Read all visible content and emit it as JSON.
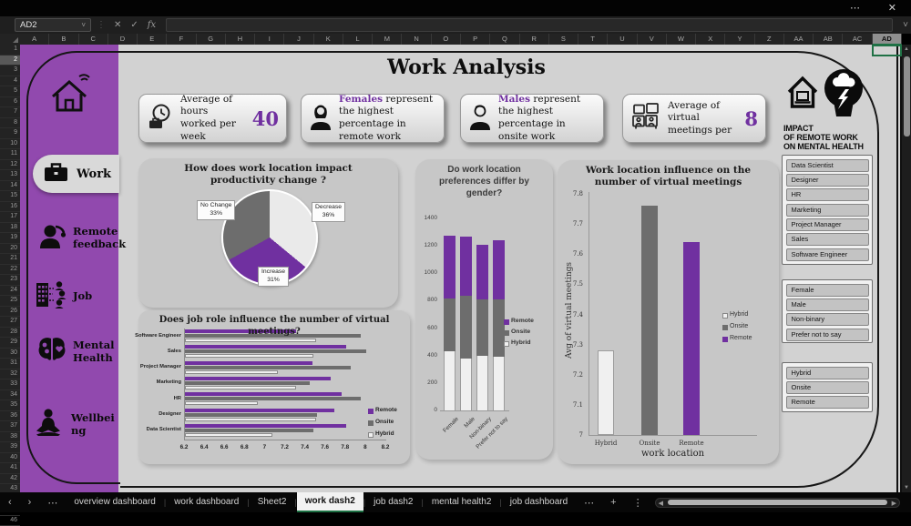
{
  "window": {
    "app": "Excel"
  },
  "icons": {
    "more": "⋯",
    "close": "✕",
    "chevron_down": "˅",
    "cancel": "✕",
    "check": "✓",
    "fx": "fx",
    "prev": "‹",
    "next": "›",
    "tabs_more": "⋯",
    "add_sheet": "+",
    "kebab": "⋮",
    "scroll_left": "◀",
    "scroll_right": "▶",
    "scroll_up": "▲",
    "scroll_down": "▼"
  },
  "formula_bar": {
    "name_box": "AD2",
    "formula_value": ""
  },
  "grid": {
    "columns": [
      "A",
      "B",
      "C",
      "D",
      "E",
      "F",
      "G",
      "H",
      "I",
      "J",
      "K",
      "L",
      "M",
      "N",
      "O",
      "P",
      "Q",
      "R",
      "S",
      "T",
      "U",
      "V",
      "W",
      "X",
      "Y",
      "Z",
      "AA",
      "AB",
      "AC",
      "AD"
    ],
    "selected_column": "AD",
    "row_count": 46,
    "selected_row": 2
  },
  "header": {
    "title": "Work Analysis"
  },
  "sidebar": {
    "items": [
      {
        "icon": "home-icon",
        "label": ""
      },
      {
        "icon": "briefcase-icon",
        "label": "Work",
        "active": true
      },
      {
        "icon": "headset-person-icon",
        "label": "Remote feedback"
      },
      {
        "icon": "org-building-icon",
        "label": "Job"
      },
      {
        "icon": "brain-icon",
        "label": "Mental Health"
      },
      {
        "icon": "meditation-icon",
        "label": "Wellbeing"
      }
    ]
  },
  "kpi_cards": [
    {
      "icon": "clock-briefcase-icon",
      "text": "Average of hours worked per week",
      "value": "40"
    },
    {
      "icon": "female-icon",
      "highlight": "Females",
      "text": " represent the highest percentage in remote work"
    },
    {
      "icon": "male-icon",
      "highlight": "Males",
      "text": " represent the highest percentage in onsite work"
    },
    {
      "icon": "virtual-meeting-icon",
      "text": "Average of virtual meetings per",
      "value": "8"
    }
  ],
  "logo": {
    "lines": [
      "IMPACT",
      "OF REMOTE WORK",
      "ON MENTAL HEALTH"
    ]
  },
  "colors": {
    "purple": "#7030a0",
    "sidebar_purple": "#9149ae",
    "dark_gray": "#6d6d6d",
    "light_gray": "#f0f0f0",
    "accent_green": "#1e7145"
  },
  "chart_data": [
    {
      "id": "productivity-pie",
      "type": "pie",
      "title": "How does work location impact productivity change ?",
      "slices": [
        {
          "label": "Decrease",
          "value": 36,
          "color": "#eaeaea"
        },
        {
          "label": "Increase",
          "value": 31,
          "color": "#7030a0"
        },
        {
          "label": "No Change",
          "value": 33,
          "color": "#6d6d6d"
        }
      ]
    },
    {
      "id": "gender-stacked",
      "type": "bar",
      "stacked": true,
      "title": "Do work location preferences differ by gender?",
      "categories": [
        "Female",
        "Male",
        "Non-binary",
        "Prefer not to say"
      ],
      "series": [
        {
          "name": "Hybrid",
          "color": "#f0f0f0",
          "values": [
            430,
            380,
            400,
            390
          ]
        },
        {
          "name": "Onsite",
          "color": "#6d6d6d",
          "values": [
            385,
            455,
            410,
            420
          ]
        },
        {
          "name": "Remote",
          "color": "#7030a0",
          "values": [
            460,
            430,
            400,
            430
          ]
        }
      ],
      "legend": [
        "Remote",
        "Onsite",
        "Hybrid"
      ],
      "legend_position": "right",
      "grid": false,
      "ylim": [
        0,
        1400
      ],
      "ytick_step": 200
    },
    {
      "id": "workloc-meetings",
      "type": "bar",
      "title": "Work location influence on the number of virtual meetings",
      "categories": [
        "Hybrid",
        "Onsite",
        "Remote"
      ],
      "values": [
        7.28,
        7.76,
        7.64
      ],
      "colors": [
        "#f0f0f0",
        "#6d6d6d",
        "#7030a0"
      ],
      "xlabel": "work location",
      "ylabel": "Avg of virtual meetings",
      "ylim": [
        7,
        7.8
      ],
      "ytick_step": 0.1,
      "grid": false,
      "legend": [
        "Hybrid",
        "Onsite",
        "Remote"
      ],
      "legend_position": "right"
    },
    {
      "id": "jobrole-meetings",
      "type": "bar-horizontal",
      "title": "Does job role influence the number of virtual meetings?",
      "categories": [
        "Software Engineer",
        "Sales",
        "Project Manager",
        "Marketing",
        "HR",
        "Designer",
        "Data Scientist"
      ],
      "series": [
        {
          "name": "Remote",
          "color": "#7030a0",
          "values": [
            7.3,
            7.8,
            7.47,
            7.65,
            7.76,
            7.68,
            7.8
          ]
        },
        {
          "name": "Onsite",
          "color": "#6d6d6d",
          "values": [
            7.95,
            8.0,
            7.85,
            7.44,
            7.95,
            7.51,
            7.48
          ]
        },
        {
          "name": "Hybrid",
          "color": "#f0f0f0",
          "values": [
            7.5,
            7.48,
            7.12,
            7.3,
            6.92,
            7.5,
            7.07
          ]
        }
      ],
      "legend": [
        "Remote",
        "Onsite",
        "Hybrid"
      ],
      "legend_position": "right",
      "grid": false,
      "xlim": [
        6.2,
        8.2
      ],
      "xtick_step": 0.2
    }
  ],
  "slicers": [
    {
      "items": [
        "Data Scientist",
        "Designer",
        "HR",
        "Marketing",
        "Project Manager",
        "Sales",
        "Software Engineer"
      ]
    },
    {
      "items": [
        "Female",
        "Male",
        "Non-binary",
        "Prefer not to say"
      ]
    },
    {
      "items": [
        "Hybrid",
        "Onsite",
        "Remote"
      ]
    }
  ],
  "sheet_tabs": {
    "tabs": [
      {
        "label": "overview dashboard"
      },
      {
        "label": "work dashboard"
      },
      {
        "label": "Sheet2"
      },
      {
        "label": "work dash2",
        "active": true
      },
      {
        "label": "job dash2"
      },
      {
        "label": "mental health2"
      },
      {
        "label": "job dashboard"
      }
    ]
  }
}
